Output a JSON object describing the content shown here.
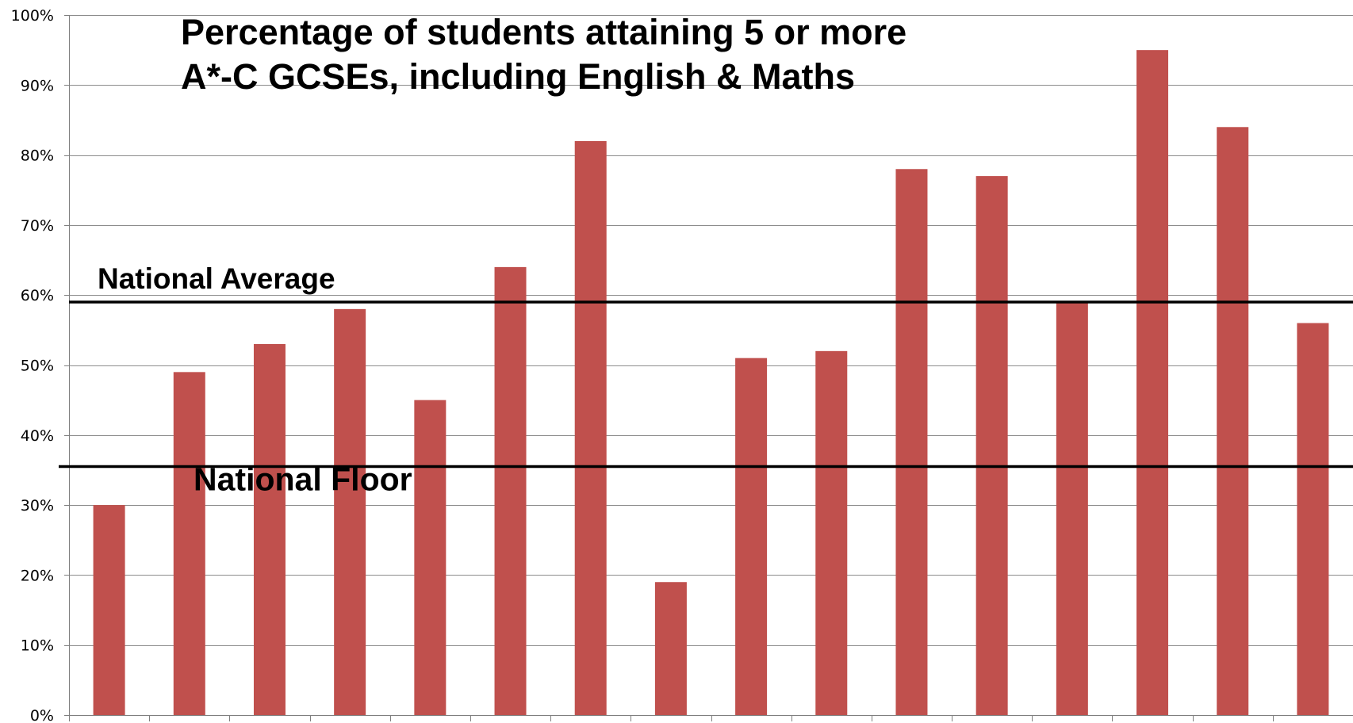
{
  "chart_data": {
    "type": "bar",
    "title_lines": [
      "Percentage of students attaining 5 or more",
      "A*-C GCSEs, including English & Maths"
    ],
    "xlabel": "",
    "ylabel": "",
    "ylim": [
      0,
      100
    ],
    "yticks": [
      0,
      10,
      20,
      30,
      40,
      50,
      60,
      70,
      80,
      90,
      100
    ],
    "ytick_labels": [
      "0%",
      "10%",
      "20%",
      "30%",
      "40%",
      "50%",
      "60%",
      "70%",
      "80%",
      "90%",
      "100%"
    ],
    "grid": true,
    "legend": "none",
    "bar_color": "#C0504D",
    "series": [
      {
        "values": [
          30,
          49,
          53,
          58,
          45,
          64,
          82,
          19,
          51,
          52,
          78,
          77,
          59,
          95,
          84,
          56
        ]
      }
    ],
    "reference_lines": [
      {
        "label": "National Average",
        "value": 59
      },
      {
        "label": "National Floor",
        "value": 35.5
      }
    ]
  }
}
